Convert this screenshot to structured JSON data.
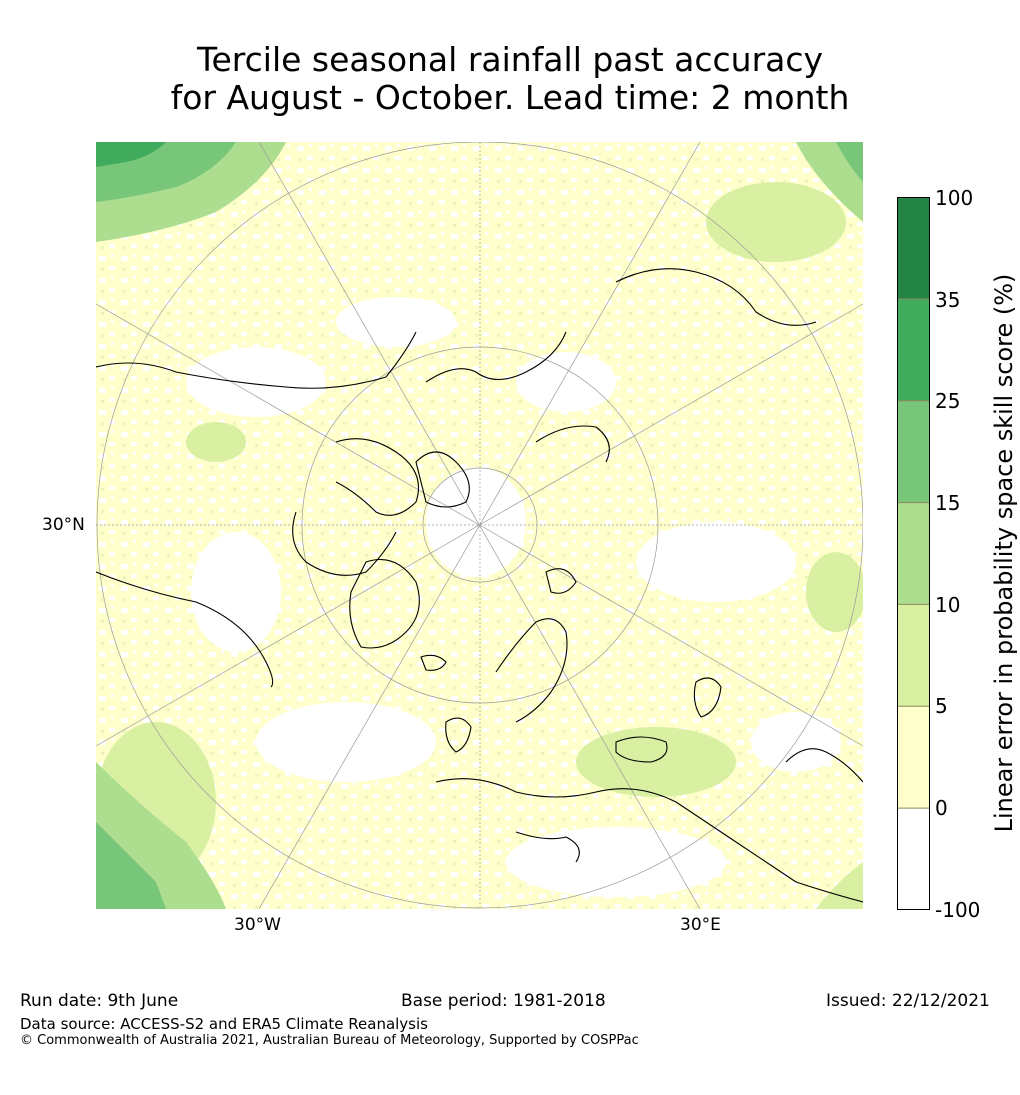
{
  "title": {
    "line1": "Tercile seasonal rainfall past accuracy",
    "line2": "for August - October. Lead time: 2 month"
  },
  "map": {
    "projection": "north-polar-stereographic",
    "lat_labels": [
      "30°N"
    ],
    "lon_labels": [
      "30°W",
      "30°E"
    ],
    "land_outline_color": "#000000",
    "graticule_color": "#9a9a9a"
  },
  "colorbar": {
    "title": "Linear error in probability space skill score (%)",
    "ticks": [
      "100",
      "35",
      "25",
      "15",
      "10",
      "5",
      "0",
      "-100"
    ],
    "bins": [
      {
        "from": -100,
        "to": 0,
        "color": "#ffffff"
      },
      {
        "from": 0,
        "to": 5,
        "color": "#ffffcc"
      },
      {
        "from": 5,
        "to": 10,
        "color": "#d9f0a3"
      },
      {
        "from": 10,
        "to": 15,
        "color": "#addd8e"
      },
      {
        "from": 15,
        "to": 25,
        "color": "#78c679"
      },
      {
        "from": 25,
        "to": 35,
        "color": "#41ab5d"
      },
      {
        "from": 35,
        "to": 100,
        "color": "#238443"
      }
    ]
  },
  "footer": {
    "run_date": "Run date: 9th June",
    "base_period": "Base period: 1981-2018",
    "issued": "Issued: 22/12/2021",
    "data_source": "Data source: ACCESS-S2 and ERA5 Climate Reanalysis",
    "copyright": "© Commonwealth of Australia 2021, Australian Bureau of Meteorology, Supported by COSPPac"
  }
}
